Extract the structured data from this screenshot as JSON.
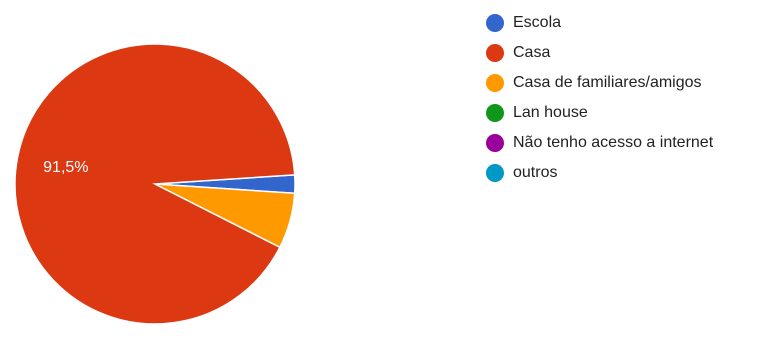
{
  "chart_data": {
    "type": "pie",
    "title": "",
    "categories": [
      "Escola",
      "Casa",
      "Casa de familiares/amigos",
      "Lan house",
      "Não tenho acesso a internet",
      "outros"
    ],
    "values": [
      2.1,
      91.5,
      6.4,
      0,
      0,
      0
    ],
    "colors": [
      "#3366cc",
      "#dc3912",
      "#ff9900",
      "#109618",
      "#990099",
      "#0099c6"
    ],
    "data_labels": [
      "",
      "91,5%",
      "",
      "",
      "",
      ""
    ],
    "legend_position": "right"
  }
}
